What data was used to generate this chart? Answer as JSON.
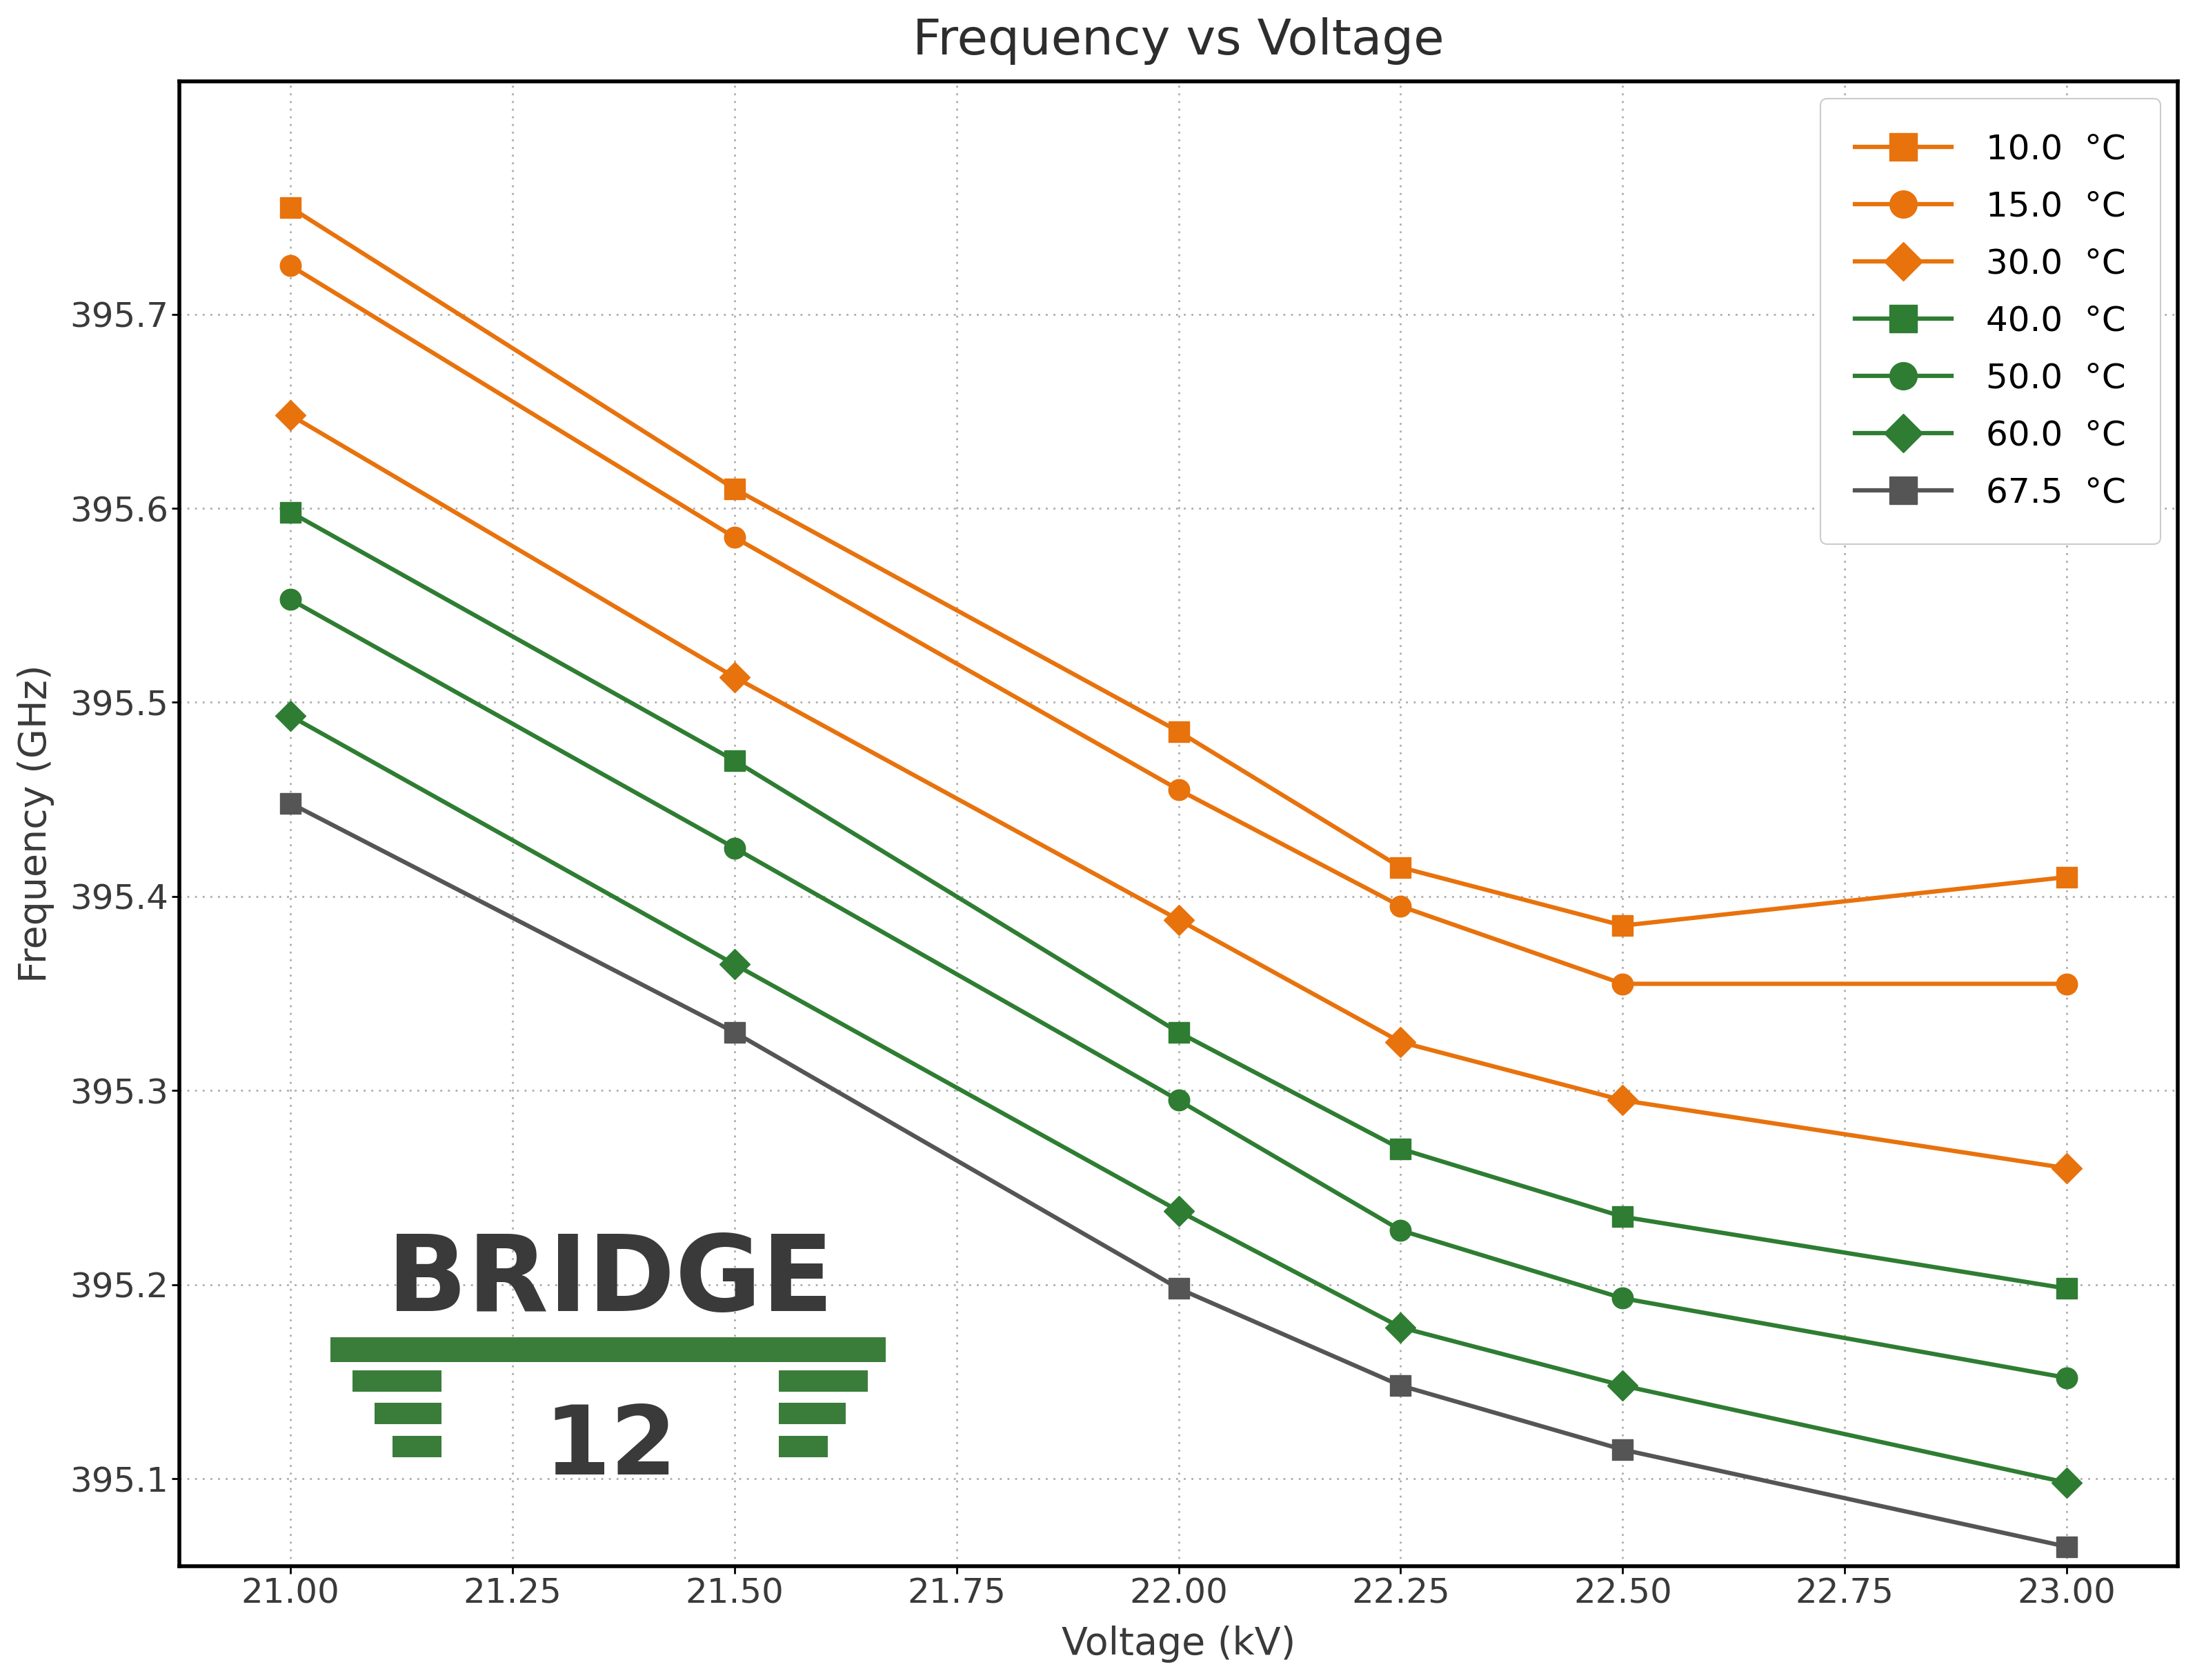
{
  "title": "Frequency vs Voltage",
  "xlabel": "Voltage (kV)",
  "ylabel": "Frequency (GHz)",
  "xlim": [
    20.875,
    23.125
  ],
  "ylim": [
    395.055,
    395.82
  ],
  "xticks": [
    21.0,
    21.25,
    21.5,
    21.75,
    22.0,
    22.25,
    22.5,
    22.75,
    23.0
  ],
  "yticks": [
    395.1,
    395.2,
    395.3,
    395.4,
    395.5,
    395.6,
    395.7
  ],
  "series": [
    {
      "label": "10.0  °C",
      "color": "#E8720C",
      "marker": "s",
      "x": [
        21.0,
        21.5,
        22.0,
        22.25,
        22.5,
        23.0
      ],
      "y": [
        395.755,
        395.61,
        395.485,
        395.415,
        395.385,
        395.41
      ]
    },
    {
      "label": "15.0  °C",
      "color": "#E8720C",
      "marker": "o",
      "x": [
        21.0,
        21.5,
        22.0,
        22.25,
        22.5,
        23.0
      ],
      "y": [
        395.725,
        395.585,
        395.455,
        395.395,
        395.355,
        395.355
      ]
    },
    {
      "label": "30.0  °C",
      "color": "#E8720C",
      "marker": "D",
      "x": [
        21.0,
        21.5,
        22.0,
        22.25,
        22.5,
        23.0
      ],
      "y": [
        395.648,
        395.513,
        395.388,
        395.325,
        395.295,
        395.26
      ]
    },
    {
      "label": "40.0  °C",
      "color": "#2E7D32",
      "marker": "s",
      "x": [
        21.0,
        21.5,
        22.0,
        22.25,
        22.5,
        23.0
      ],
      "y": [
        395.598,
        395.47,
        395.33,
        395.27,
        395.235,
        395.198
      ]
    },
    {
      "label": "50.0  °C",
      "color": "#2E7D32",
      "marker": "o",
      "x": [
        21.0,
        21.5,
        22.0,
        22.25,
        22.5,
        23.0
      ],
      "y": [
        395.553,
        395.425,
        395.295,
        395.228,
        395.193,
        395.152
      ]
    },
    {
      "label": "60.0  °C",
      "color": "#2E7D32",
      "marker": "D",
      "x": [
        21.0,
        21.5,
        22.0,
        22.25,
        22.5,
        23.0
      ],
      "y": [
        395.493,
        395.365,
        395.238,
        395.178,
        395.148,
        395.098
      ]
    },
    {
      "label": "67.5  °C",
      "color": "#555555",
      "marker": "s",
      "x": [
        21.0,
        21.5,
        22.0,
        22.25,
        22.5,
        23.0
      ],
      "y": [
        395.448,
        395.33,
        395.198,
        395.148,
        395.115,
        395.065
      ]
    }
  ],
  "background_color": "#ffffff",
  "grid_color": "#999999",
  "title_fontsize": 52,
  "label_fontsize": 40,
  "tick_fontsize": 36,
  "legend_fontsize": 36,
  "line_width": 4.5,
  "marker_size": 22,
  "bridge_text_color": "#3a3a3a",
  "bridge_bar_color": "#3a7d3a"
}
